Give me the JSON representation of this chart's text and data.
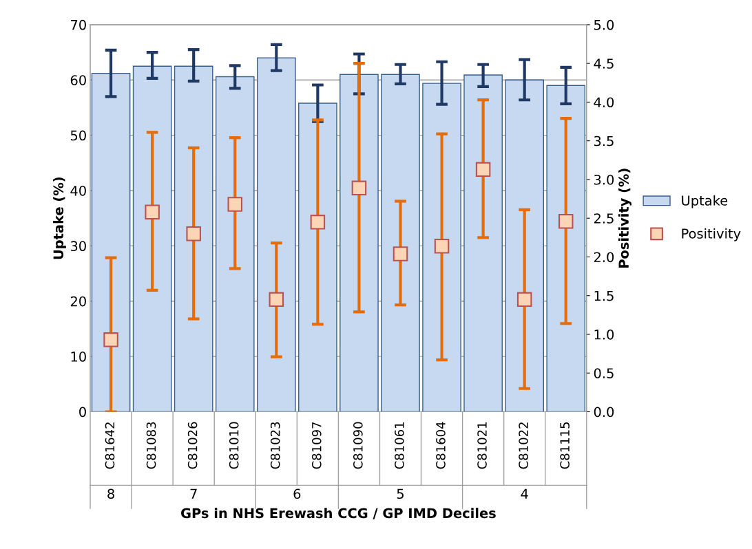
{
  "chart_data": {
    "type": "bar",
    "xlabel": "GPs in NHS Erewash CCG / GP IMD Deciles",
    "ylabel": "Uptake (%)",
    "y2label": "Positivity (%)",
    "categories": [
      "C81642",
      "C81083",
      "C81026",
      "C81010",
      "C81023",
      "C81097",
      "C81090",
      "C81061",
      "C81604",
      "C81021",
      "C81022",
      "C81115"
    ],
    "series": [
      {
        "name": "Uptake",
        "color": "#c6d9f1",
        "values": [
          61.2,
          62.5,
          62.5,
          60.6,
          64.0,
          55.8,
          61.0,
          61.0,
          59.4,
          60.9,
          60.0,
          59.0
        ],
        "errors": [
          [
            57.0,
            65.4
          ],
          [
            60.3,
            65.0
          ],
          [
            59.8,
            65.5
          ],
          [
            58.5,
            62.6
          ],
          [
            61.7,
            66.4
          ],
          [
            52.5,
            59.1
          ],
          [
            57.5,
            64.7
          ],
          [
            59.3,
            62.8
          ],
          [
            55.6,
            63.3
          ],
          [
            58.8,
            62.8
          ],
          [
            56.4,
            63.7
          ],
          [
            55.7,
            62.3
          ]
        ]
      },
      {
        "name": "Positivity",
        "type": "scatter",
        "axis": "y2",
        "color": "#fbd5b5",
        "marker": "square",
        "values": [
          0.93,
          2.58,
          2.3,
          2.68,
          1.45,
          2.45,
          2.89,
          2.04,
          2.14,
          3.13,
          1.45,
          2.46
        ],
        "errors": [
          [
            0.0,
            1.99
          ],
          [
            1.57,
            3.61
          ],
          [
            1.2,
            3.41
          ],
          [
            1.85,
            3.54
          ],
          [
            0.71,
            2.18
          ],
          [
            1.13,
            3.77
          ],
          [
            1.29,
            4.5
          ],
          [
            1.38,
            2.72
          ],
          [
            0.67,
            3.59
          ],
          [
            2.25,
            4.03
          ],
          [
            0.3,
            2.61
          ],
          [
            1.14,
            3.79
          ]
        ]
      }
    ],
    "ylim": [
      0,
      70
    ],
    "yticks": [
      0,
      10,
      20,
      30,
      40,
      50,
      60,
      70
    ],
    "y2lim": [
      0,
      5
    ],
    "y2ticks": [
      {
        "value": 0,
        "label": "0.0"
      },
      {
        "value": 0.5,
        "label": "0.5"
      },
      {
        "value": 1,
        "label": "1.0"
      },
      {
        "value": 1.5,
        "label": "1.5"
      },
      {
        "value": 2,
        "label": "2.0"
      },
      {
        "value": 2.5,
        "label": "2.5"
      },
      {
        "value": 3,
        "label": "3.0"
      },
      {
        "value": 3.5,
        "label": "3.5"
      },
      {
        "value": 4,
        "label": "4.0"
      },
      {
        "value": 4.5,
        "label": "4.5"
      },
      {
        "value": 5,
        "label": "5.0"
      }
    ],
    "annotations": [
      "8",
      "7",
      "6",
      "5",
      "4"
    ],
    "grid": "y",
    "legend": "right"
  }
}
